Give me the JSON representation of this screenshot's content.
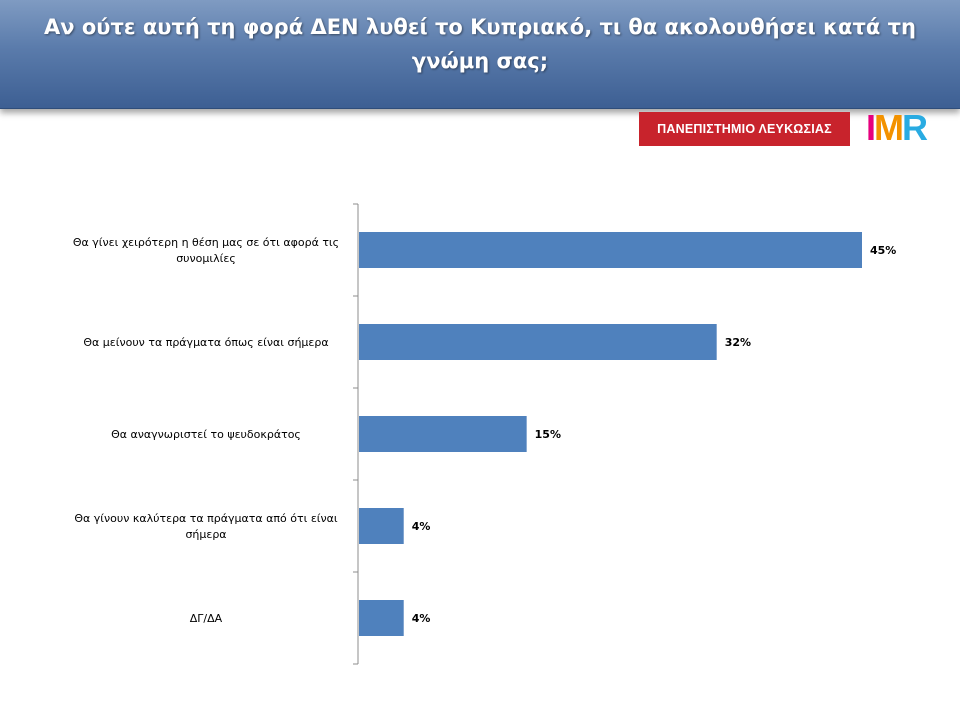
{
  "title": "Αν ούτε αυτή τη φορά ΔΕΝ λυθεί το Κυπριακό, τι θα ακολουθήσει κατά τη γνώμη σας;",
  "logos": {
    "university": "ΠΑΝΕΠΙΣΤΗΜΙΟ ΛΕΥΚΩΣΙΑΣ",
    "imr": "IMR"
  },
  "chart_data": {
    "type": "bar",
    "orientation": "horizontal",
    "categories": [
      "Θα γίνει χειρότερη η θέση μας σε ότι αφορά τις συνομιλίες",
      "Θα μείνουν τα πράγματα όπως είναι σήμερα",
      "Θα αναγνωριστεί το ψευδοκράτος",
      "Θα γίνουν καλύτερα τα πράγματα από ότι είναι σήμερα",
      "ΔΓ/ΔΑ"
    ],
    "values": [
      45,
      32,
      15,
      4,
      4
    ],
    "value_labels": [
      "45%",
      "32%",
      "15%",
      "4%",
      "4%"
    ],
    "unit": "%",
    "xlim": [
      0,
      45
    ],
    "bar_color": "#4f81bd",
    "grid": false,
    "legend": "none"
  }
}
